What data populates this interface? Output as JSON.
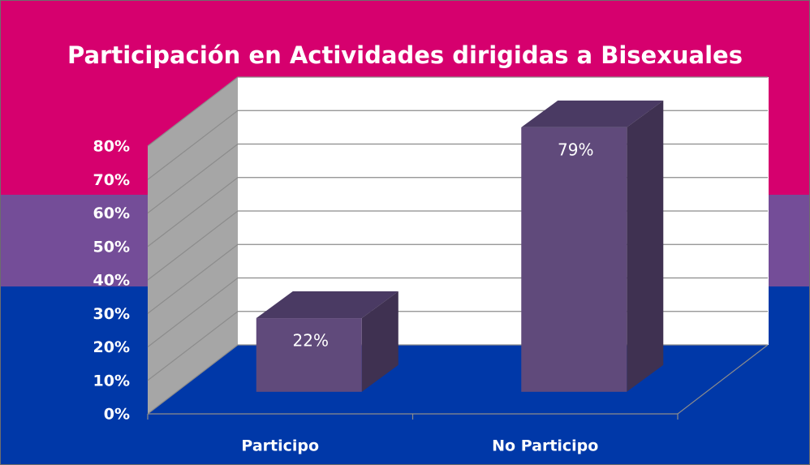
{
  "chart_data": {
    "type": "bar3d",
    "title": "Participación en Actividades dirigidas  a Bisexuales",
    "categories": [
      "Participo",
      "No Participo"
    ],
    "values": [
      22,
      79
    ],
    "value_labels": [
      "22%",
      "79%"
    ],
    "color": "#604a7b",
    "ylim": [
      0,
      80
    ],
    "yticks": [
      {
        "value": 0,
        "label": "0%"
      },
      {
        "value": 10,
        "label": "10%"
      },
      {
        "value": 20,
        "label": "20%"
      },
      {
        "value": 30,
        "label": "30%"
      },
      {
        "value": 40,
        "label": "40%"
      },
      {
        "value": 50,
        "label": "50%"
      },
      {
        "value": 60,
        "label": "60%"
      },
      {
        "value": 70,
        "label": "70%"
      },
      {
        "value": 80,
        "label": "80%"
      }
    ],
    "grid": true
  }
}
